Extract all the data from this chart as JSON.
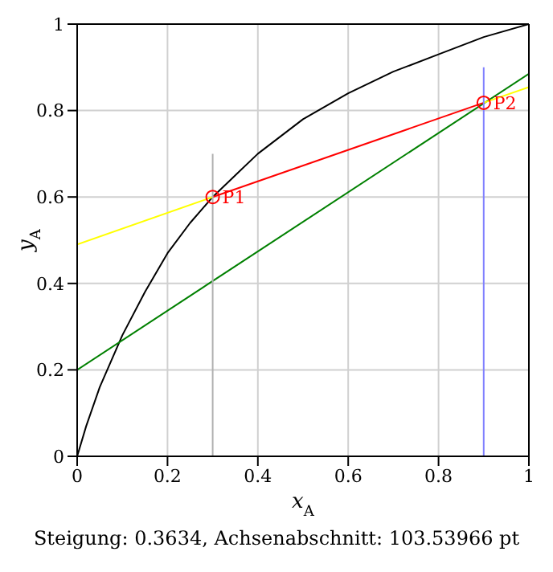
{
  "chart_data": {
    "type": "line",
    "xlabel": "x$_{A}$",
    "ylabel": "y$_{A}$",
    "xlim": [
      0,
      1
    ],
    "ylim": [
      0,
      1
    ],
    "xticks": [
      0,
      0.2,
      0.4,
      0.6,
      0.8,
      1
    ],
    "yticks": [
      0,
      0.2,
      0.4,
      0.6,
      0.8,
      1
    ],
    "grid": true,
    "marker": "none",
    "series": [
      {
        "color": "#000000",
        "x": [
          0,
          0.02,
          0.05,
          0.1,
          0.15,
          0.2,
          0.25,
          0.3,
          0.35,
          0.4,
          0.5,
          0.6,
          0.7,
          0.8,
          0.9,
          1
        ],
        "values": [
          0,
          0.07,
          0.16,
          0.28,
          0.38,
          0.47,
          0.54,
          0.6,
          0.65,
          0.7,
          0.78,
          0.84,
          0.89,
          0.93,
          0.97,
          1
        ]
      },
      {
        "color": "#008000",
        "x": [
          0,
          1
        ],
        "values": [
          0.2,
          0.885
        ]
      },
      {
        "color": "#ffff00",
        "x": [
          0,
          0.3,
          0.6,
          0.9,
          1
        ],
        "values": [
          0.49,
          0.6,
          null,
          0.818,
          0.854
        ]
      },
      {
        "color": "#ff0000",
        "x": [
          0.3,
          0.9
        ],
        "values": [
          0.6,
          0.818
        ]
      },
      {
        "color": "#b0b0b0",
        "x": [
          0.3,
          0.3
        ],
        "values": [
          0,
          0.7
        ]
      },
      {
        "color": "#8080ff",
        "x": [
          0.9,
          0.9
        ],
        "values": [
          0,
          0.9
        ]
      },
      {
        "type": "scatter",
        "marker": "circle",
        "color": "#ff0000",
        "x": [
          0.3,
          0.9
        ],
        "values": [
          0.6,
          0.818
        ]
      }
    ],
    "annotations": [
      {
        "text": "P1",
        "x": 0.3,
        "y": 0.6
      },
      {
        "text": "P2",
        "x": 0.9,
        "y": 0.818
      },
      "Steigung: 0.3634, Achsenabschnitt: 103.53966 pt"
    ]
  }
}
